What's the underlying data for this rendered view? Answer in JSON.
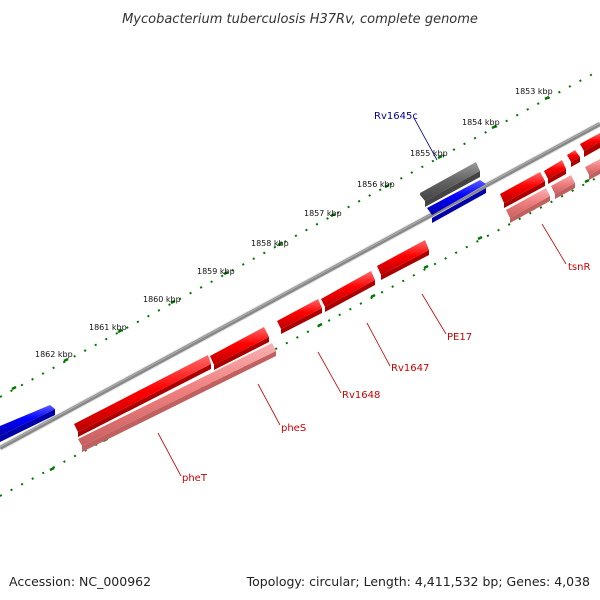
{
  "header": {
    "title": "Mycobacterium tuberculosis H37Rv, complete genome"
  },
  "footer": {
    "accession": "Accession: NC_000962",
    "summary": "Topology: circular; Length: 4,411,532 bp; Genes: 4,038"
  },
  "ticks": [
    {
      "label": "1853 kbp"
    },
    {
      "label": "1854 kbp"
    },
    {
      "label": "1855 kbp"
    },
    {
      "label": "1856 kbp"
    },
    {
      "label": "1857 kbp"
    },
    {
      "label": "1858 kbp"
    },
    {
      "label": "1859 kbp"
    },
    {
      "label": "1860 kbp"
    },
    {
      "label": "1861 kbp"
    },
    {
      "label": "1862 kbp"
    }
  ],
  "gene_labels": {
    "rv1645c": "Rv1645c",
    "tsnr": "tsnR",
    "pe17": "PE17",
    "rv1647": "Rv1647",
    "rv1648": "Rv1648",
    "phes": "pheS",
    "phet": "pheT"
  },
  "colors": {
    "forward_cds": "#ff0000",
    "forward_gene": "#f08080",
    "reverse_cds": "#0000ff",
    "reverse_gene": "#666666",
    "backbone": "#888888",
    "tick": "#007700",
    "label_forward": "#cc0000",
    "label_reverse": "#000099"
  }
}
